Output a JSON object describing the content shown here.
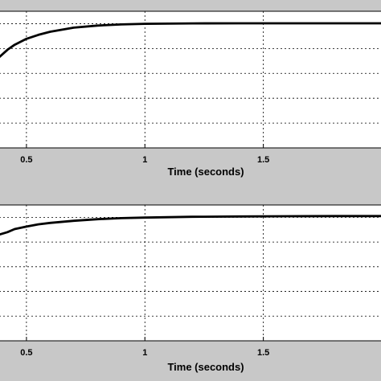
{
  "chart_data": [
    {
      "type": "line",
      "xlabel": "Time (seconds)",
      "x_ticks": [
        0.5,
        1,
        1.5
      ],
      "x_tick_labels": [
        "0.5",
        "1",
        "1.5"
      ],
      "xlim": [
        0.385,
        2.0
      ],
      "ylim": [
        0,
        1.1
      ],
      "y_gridlines": [
        0.2,
        0.4,
        0.6,
        0.8,
        1.0
      ],
      "grid": true,
      "series": [
        {
          "color": "#000000",
          "x": [
            0.385,
            0.42,
            0.45,
            0.5,
            0.55,
            0.6,
            0.7,
            0.8,
            0.9,
            1.0,
            1.2,
            1.4,
            1.6,
            1.8,
            2.0
          ],
          "y": [
            0.73,
            0.79,
            0.83,
            0.878,
            0.91,
            0.935,
            0.968,
            0.985,
            0.994,
            0.999,
            1.002,
            1.003,
            1.003,
            1.003,
            1.003
          ]
        }
      ]
    },
    {
      "type": "line",
      "xlabel": "Time (seconds)",
      "x_ticks": [
        0.5,
        1,
        1.5
      ],
      "x_tick_labels": [
        "0.5",
        "1",
        "1.5"
      ],
      "xlim": [
        0.385,
        2.0
      ],
      "ylim": [
        0,
        1.1
      ],
      "y_gridlines": [
        0.2,
        0.4,
        0.6,
        0.8,
        1.0
      ],
      "grid": true,
      "series": [
        {
          "color": "#000000",
          "x": [
            0.385,
            0.42,
            0.45,
            0.5,
            0.55,
            0.6,
            0.7,
            0.8,
            0.9,
            1.0,
            1.2,
            1.4,
            1.6,
            1.8,
            2.0
          ],
          "y": [
            0.86,
            0.88,
            0.905,
            0.925,
            0.943,
            0.955,
            0.972,
            0.985,
            0.993,
            0.998,
            1.004,
            1.007,
            1.009,
            1.01,
            1.01
          ]
        }
      ]
    }
  ]
}
